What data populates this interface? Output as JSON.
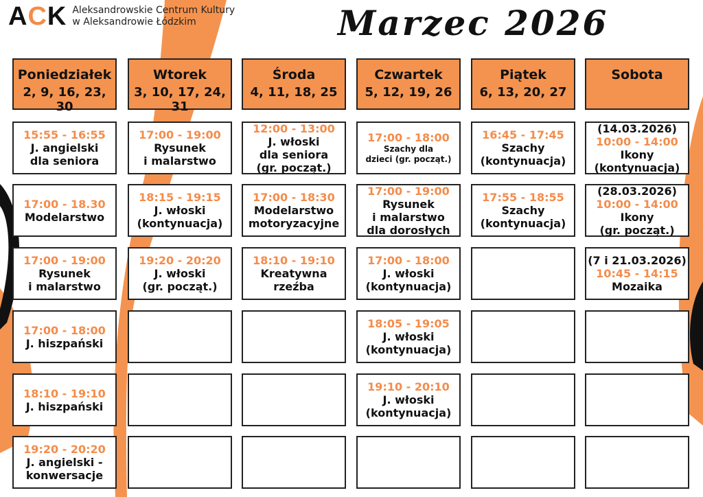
{
  "header": {
    "logo": "ACK",
    "org_line1": "Aleksandrowskie Centrum Kultury",
    "org_line2": "w Aleksandrowie Łódzkim",
    "title": "Marzec 2026"
  },
  "colors": {
    "accent": "#f4934f",
    "time": "#f48c4a",
    "text": "#111111"
  },
  "days": [
    {
      "name": "Poniedziałek",
      "dates": "2, 9, 16, 23, 30",
      "cells": [
        {
          "time": "15:55 - 16:55",
          "lines": [
            "J. angielski",
            "dla seniora"
          ]
        },
        {
          "time": "17:00 - 18.30",
          "lines": [
            "Modelarstwo"
          ]
        },
        {
          "time": "17:00 - 19:00",
          "lines": [
            "Rysunek",
            "i malarstwo"
          ]
        },
        {
          "time": "17:00 - 18:00",
          "lines": [
            "J. hiszpański"
          ]
        },
        {
          "time": "18:10 - 19:10",
          "lines": [
            "J. hiszpański"
          ]
        },
        {
          "time": "19:20 - 20:20",
          "lines": [
            "J. angielski -",
            "konwersacje"
          ]
        }
      ]
    },
    {
      "name": "Wtorek",
      "dates": "3, 10, 17, 24, 31",
      "cells": [
        {
          "time": "17:00 - 19:00",
          "lines": [
            "Rysunek",
            "i malarstwo"
          ]
        },
        {
          "time": "18:15 - 19:15",
          "lines": [
            "J. włoski",
            "(kontynuacja)"
          ]
        },
        {
          "time": "19:20 - 20:20",
          "lines": [
            "J. włoski",
            "(gr. począt.)"
          ]
        },
        null,
        null,
        null
      ]
    },
    {
      "name": "Środa",
      "dates": "4, 11, 18, 25",
      "cells": [
        {
          "time": "12:00 - 13:00",
          "lines": [
            "J. włoski",
            "dla seniora",
            "(gr. począt.)"
          ]
        },
        {
          "time": "17:00 - 18:30",
          "lines": [
            "Modelarstwo",
            "motoryzacyjne"
          ]
        },
        {
          "time": "18:10 - 19:10",
          "lines": [
            "Kreatywna",
            "rzeźba"
          ]
        },
        null,
        null,
        null
      ]
    },
    {
      "name": "Czwartek",
      "dates": "5, 12, 19, 26",
      "cells": [
        {
          "time": "17:00 - 18:00",
          "small": [
            "Szachy dla",
            "dzieci (gr. począt.)"
          ]
        },
        {
          "time": "17:00 - 19:00",
          "lines": [
            "Rysunek",
            "i malarstwo",
            "dla dorosłych"
          ]
        },
        {
          "time": "17:00 - 18:00",
          "lines": [
            "J. włoski",
            "(kontynuacja)"
          ]
        },
        {
          "time": "18:05 - 19:05",
          "lines": [
            "J. włoski",
            "(kontynuacja)"
          ]
        },
        {
          "time": "19:10 - 20:10",
          "lines": [
            "J. włoski",
            "(kontynuacja)"
          ]
        },
        null
      ]
    },
    {
      "name": "Piątek",
      "dates": "6, 13, 20, 27",
      "cells": [
        {
          "time": "16:45 - 17:45",
          "lines": [
            "Szachy",
            "(kontynuacja)"
          ]
        },
        {
          "time": "17:55 - 18:55",
          "lines": [
            "Szachy",
            "(kontynuacja)"
          ]
        },
        null,
        null,
        null,
        null
      ]
    },
    {
      "name": "Sobota",
      "dates": "",
      "cells": [
        {
          "pre": "(14.03.2026)",
          "time": "10:00 - 14:00",
          "lines": [
            "Ikony",
            "(kontynuacja)"
          ]
        },
        {
          "pre": "(28.03.2026)",
          "time": "10:00 - 14:00",
          "lines": [
            "Ikony",
            "(gr. począt.)"
          ]
        },
        {
          "pre": "(7 i 21.03.2026)",
          "time": "10:45 - 14:15",
          "lines": [
            "Mozaika"
          ]
        },
        null,
        null,
        null
      ]
    }
  ]
}
